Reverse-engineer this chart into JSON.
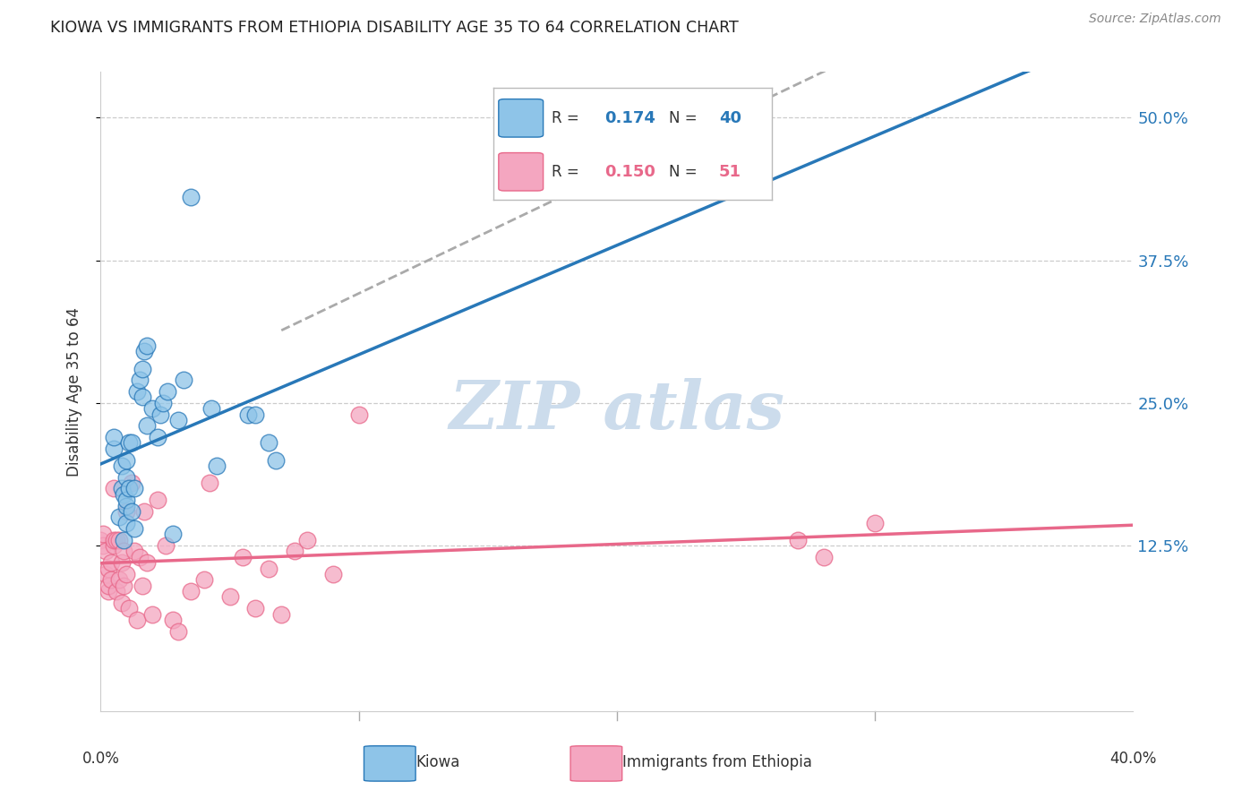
{
  "title": "KIOWA VS IMMIGRANTS FROM ETHIOPIA DISABILITY AGE 35 TO 64 CORRELATION CHART",
  "source": "Source: ZipAtlas.com",
  "ylabel": "Disability Age 35 to 64",
  "ylabel_ticks": [
    "12.5%",
    "25.0%",
    "37.5%",
    "50.0%"
  ],
  "ylabel_tick_values": [
    0.125,
    0.25,
    0.375,
    0.5
  ],
  "xlim": [
    0.0,
    0.4
  ],
  "ylim": [
    -0.02,
    0.54
  ],
  "color_blue": "#8ec4e8",
  "color_pink": "#f4a6c0",
  "color_blue_line": "#2878b8",
  "color_pink_line": "#e8688a",
  "color_dashed": "#aaaaaa",
  "kiowa_x": [
    0.005,
    0.005,
    0.007,
    0.008,
    0.008,
    0.009,
    0.009,
    0.01,
    0.01,
    0.01,
    0.01,
    0.01,
    0.011,
    0.011,
    0.012,
    0.012,
    0.013,
    0.013,
    0.014,
    0.015,
    0.016,
    0.016,
    0.017,
    0.018,
    0.018,
    0.02,
    0.022,
    0.023,
    0.024,
    0.026,
    0.028,
    0.03,
    0.032,
    0.035,
    0.043,
    0.045,
    0.057,
    0.06,
    0.065,
    0.068
  ],
  "kiowa_y": [
    0.21,
    0.22,
    0.15,
    0.175,
    0.195,
    0.13,
    0.17,
    0.145,
    0.16,
    0.165,
    0.185,
    0.2,
    0.175,
    0.215,
    0.155,
    0.215,
    0.14,
    0.175,
    0.26,
    0.27,
    0.255,
    0.28,
    0.295,
    0.3,
    0.23,
    0.245,
    0.22,
    0.24,
    0.25,
    0.26,
    0.135,
    0.235,
    0.27,
    0.43,
    0.245,
    0.195,
    0.24,
    0.24,
    0.215,
    0.2
  ],
  "ethiopia_x": [
    0.0,
    0.001,
    0.001,
    0.002,
    0.002,
    0.003,
    0.003,
    0.003,
    0.004,
    0.004,
    0.005,
    0.005,
    0.005,
    0.006,
    0.006,
    0.007,
    0.007,
    0.008,
    0.008,
    0.009,
    0.009,
    0.01,
    0.01,
    0.011,
    0.012,
    0.013,
    0.014,
    0.015,
    0.016,
    0.017,
    0.018,
    0.02,
    0.022,
    0.025,
    0.028,
    0.03,
    0.035,
    0.04,
    0.042,
    0.05,
    0.055,
    0.06,
    0.065,
    0.07,
    0.075,
    0.08,
    0.09,
    0.1,
    0.27,
    0.28,
    0.3
  ],
  "ethiopia_y": [
    0.13,
    0.125,
    0.135,
    0.1,
    0.12,
    0.085,
    0.09,
    0.105,
    0.095,
    0.11,
    0.125,
    0.13,
    0.175,
    0.085,
    0.13,
    0.095,
    0.13,
    0.075,
    0.11,
    0.09,
    0.12,
    0.155,
    0.1,
    0.07,
    0.18,
    0.12,
    0.06,
    0.115,
    0.09,
    0.155,
    0.11,
    0.065,
    0.165,
    0.125,
    0.06,
    0.05,
    0.085,
    0.095,
    0.18,
    0.08,
    0.115,
    0.07,
    0.105,
    0.065,
    0.12,
    0.13,
    0.1,
    0.24,
    0.13,
    0.115,
    0.145
  ],
  "background_color": "#ffffff",
  "grid_color": "#cccccc",
  "watermark_color": "#ccdcec"
}
